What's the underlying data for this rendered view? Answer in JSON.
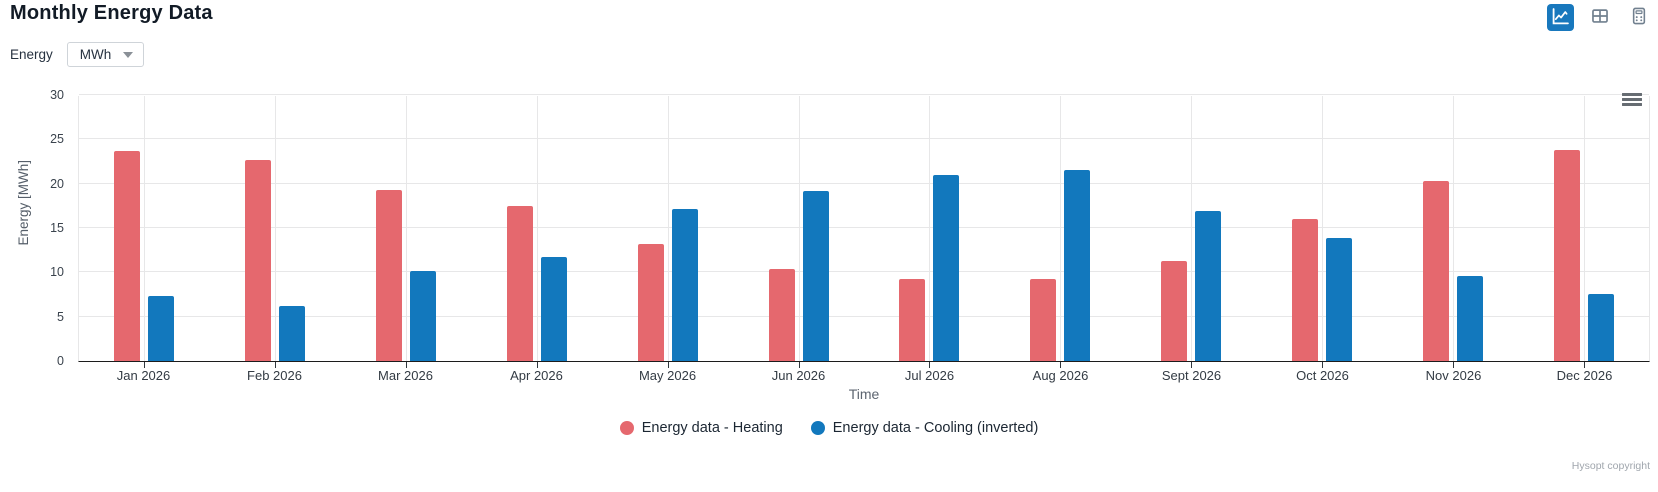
{
  "header": {
    "title": "Monthly Energy Data",
    "energy_control": {
      "label": "Energy",
      "selected_value": "MWh"
    },
    "toolbar": {
      "buttons": [
        {
          "name": "chart-view",
          "icon": "line-chart-icon",
          "active": true
        },
        {
          "name": "table-view",
          "icon": "table-icon",
          "active": false
        },
        {
          "name": "calculator-view",
          "icon": "calculator-icon",
          "active": false
        }
      ]
    }
  },
  "colors": {
    "heating": "#e5686e",
    "cooling": "#1278bd",
    "active_button": "#1878bd",
    "grid": "#e7e7e8",
    "axis": "#1c1c1c"
  },
  "chart_data": {
    "type": "bar",
    "title": "Monthly Energy Data",
    "categories": [
      "Jan 2026",
      "Feb 2026",
      "Mar 2026",
      "Apr 2026",
      "May 2026",
      "Jun 2026",
      "Jul 2026",
      "Aug 2026",
      "Sept 2026",
      "Oct 2026",
      "Nov 2026",
      "Dec 2026"
    ],
    "series": [
      {
        "name": "Energy data - Heating",
        "color": "#e5686e",
        "values": [
          23.7,
          22.7,
          19.3,
          17.5,
          13.2,
          10.4,
          9.2,
          9.3,
          11.3,
          16.0,
          20.3,
          23.8
        ]
      },
      {
        "name": "Energy data - Cooling (inverted)",
        "color": "#1278bd",
        "values": [
          7.3,
          6.2,
          10.2,
          11.7,
          17.1,
          19.2,
          21.0,
          21.5,
          16.9,
          13.9,
          9.6,
          7.6
        ]
      }
    ],
    "xlabel": "Time",
    "ylabel": "Energy [MWh]",
    "ylim": [
      0,
      30
    ],
    "ytick_step": 5,
    "grid": true,
    "legend_position": "bottom"
  },
  "footer": {
    "copyright": "Hysopt copyright"
  }
}
